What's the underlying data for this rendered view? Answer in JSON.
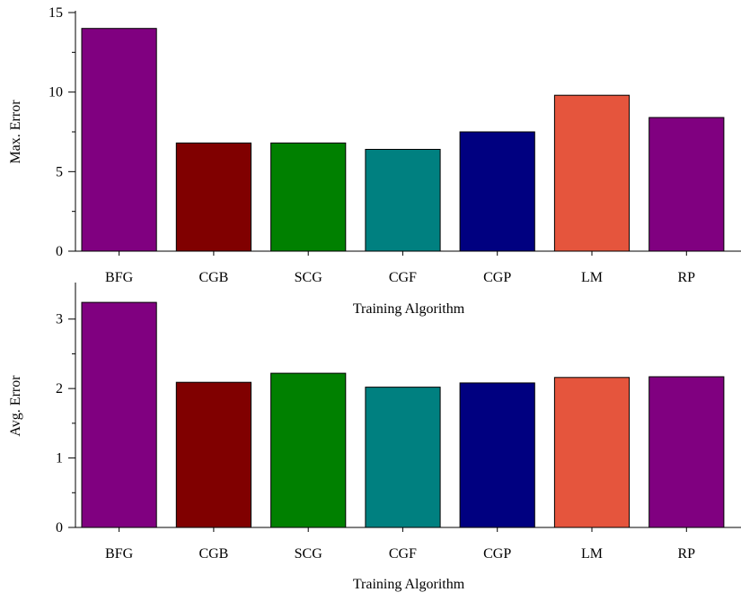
{
  "chart_data": [
    {
      "type": "bar",
      "categories": [
        "BFG",
        "CGB",
        "SCG",
        "CGF",
        "CGP",
        "LM",
        "RP"
      ],
      "values": [
        14.0,
        6.8,
        6.8,
        6.4,
        7.5,
        9.8,
        8.4
      ],
      "colors": [
        "#800080",
        "#800000",
        "#008000",
        "#008080",
        "#000080",
        "#e5553d",
        "#800080"
      ],
      "xlabel": "Training Algorithm",
      "ylabel": "Max. Error",
      "ylim": [
        0,
        15
      ],
      "yticks": [
        "0",
        "5",
        "10",
        "15"
      ],
      "grid": false
    },
    {
      "type": "bar",
      "categories": [
        "BFG",
        "CGB",
        "SCG",
        "CGF",
        "CGP",
        "LM",
        "RP"
      ],
      "values": [
        3.24,
        2.09,
        2.22,
        2.02,
        2.08,
        2.16,
        2.17
      ],
      "colors": [
        "#800080",
        "#800000",
        "#008000",
        "#008080",
        "#000080",
        "#e5553d",
        "#800080"
      ],
      "xlabel": "Training Algorithm",
      "ylabel": "Avg. Error",
      "ylim": [
        0,
        3.5
      ],
      "yticks": [
        "0",
        "1",
        "2",
        "3"
      ],
      "grid": false
    }
  ]
}
